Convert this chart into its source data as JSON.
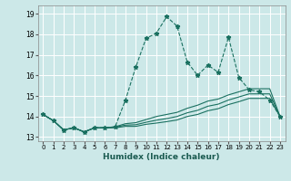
{
  "xlabel": "Humidex (Indice chaleur)",
  "xlim": [
    -0.5,
    23.5
  ],
  "ylim": [
    12.8,
    19.4
  ],
  "bg_color": "#cce8e8",
  "grid_color": "#ffffff",
  "line_color": "#1a7060",
  "xticks": [
    0,
    1,
    2,
    3,
    4,
    5,
    6,
    7,
    8,
    9,
    10,
    11,
    12,
    13,
    14,
    15,
    16,
    17,
    18,
    19,
    20,
    21,
    22,
    23
  ],
  "yticks": [
    13,
    14,
    15,
    16,
    17,
    18,
    19
  ],
  "lines": [
    {
      "x": [
        0,
        1,
        2,
        3,
        4,
        5,
        6,
        7,
        8,
        9,
        10,
        11,
        12,
        13,
        14,
        15,
        16,
        17,
        18,
        19,
        20,
        21,
        22,
        23
      ],
      "y": [
        14.1,
        13.8,
        13.35,
        13.45,
        13.25,
        13.45,
        13.45,
        13.5,
        14.8,
        16.4,
        17.8,
        18.05,
        18.85,
        18.4,
        16.65,
        16.0,
        16.5,
        16.15,
        17.85,
        15.9,
        15.3,
        15.2,
        14.8,
        14.0
      ],
      "marker": "*",
      "markersize": 3.5,
      "linewidth": 0.8,
      "linestyle": "--"
    },
    {
      "x": [
        0,
        1,
        2,
        3,
        4,
        5,
        6,
        7,
        8,
        9,
        10,
        11,
        12,
        13,
        14,
        15,
        16,
        17,
        18,
        19,
        20,
        21,
        22,
        23
      ],
      "y": [
        14.1,
        13.8,
        13.35,
        13.45,
        13.25,
        13.45,
        13.45,
        13.5,
        13.65,
        13.7,
        13.85,
        14.0,
        14.1,
        14.2,
        14.4,
        14.55,
        14.75,
        14.85,
        15.05,
        15.2,
        15.35,
        15.35,
        15.35,
        14.0
      ],
      "marker": null,
      "markersize": 0,
      "linewidth": 0.8,
      "linestyle": "-"
    },
    {
      "x": [
        0,
        1,
        2,
        3,
        4,
        5,
        6,
        7,
        8,
        9,
        10,
        11,
        12,
        13,
        14,
        15,
        16,
        17,
        18,
        19,
        20,
        21,
        22,
        23
      ],
      "y": [
        14.1,
        13.8,
        13.35,
        13.45,
        13.25,
        13.45,
        13.45,
        13.48,
        13.58,
        13.6,
        13.72,
        13.82,
        13.9,
        14.0,
        14.18,
        14.3,
        14.5,
        14.6,
        14.8,
        14.95,
        15.1,
        15.1,
        15.1,
        14.0
      ],
      "marker": null,
      "markersize": 0,
      "linewidth": 0.8,
      "linestyle": "-"
    },
    {
      "x": [
        0,
        1,
        2,
        3,
        4,
        5,
        6,
        7,
        8,
        9,
        10,
        11,
        12,
        13,
        14,
        15,
        16,
        17,
        18,
        19,
        20,
        21,
        22,
        23
      ],
      "y": [
        14.1,
        13.8,
        13.35,
        13.45,
        13.25,
        13.45,
        13.45,
        13.45,
        13.52,
        13.52,
        13.62,
        13.68,
        13.75,
        13.83,
        14.0,
        14.1,
        14.28,
        14.38,
        14.58,
        14.72,
        14.88,
        14.88,
        14.88,
        14.0
      ],
      "marker": null,
      "markersize": 0,
      "linewidth": 0.8,
      "linestyle": "-"
    }
  ]
}
